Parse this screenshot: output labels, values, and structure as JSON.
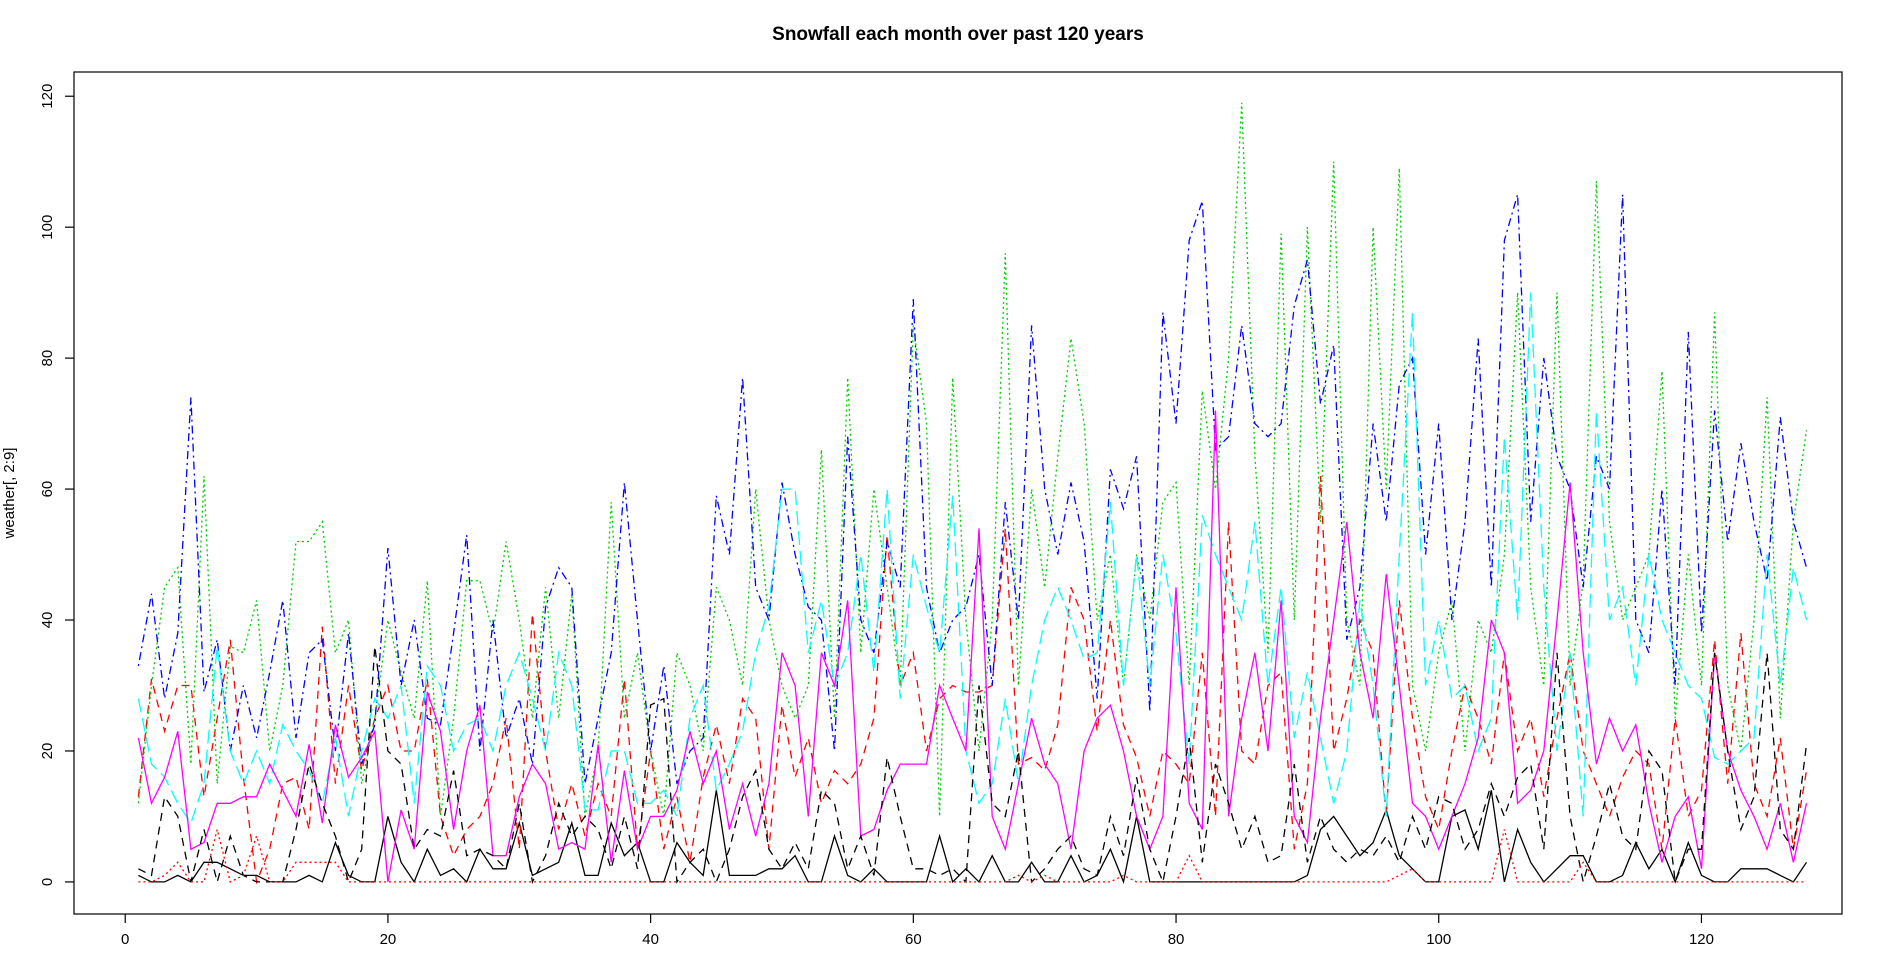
{
  "chart_data": {
    "type": "line",
    "title": "Snowfall each month over past 120 years",
    "y_label": "weather[, 2:9]",
    "xlim": [
      -3.9,
      130.7
    ],
    "ylim": [
      -4.9,
      123.7
    ],
    "xticks": [
      0,
      20,
      40,
      60,
      80,
      100,
      120
    ],
    "yticks": [
      0,
      20,
      40,
      60,
      80,
      100,
      120
    ],
    "x": [
      1,
      2,
      3,
      4,
      5,
      6,
      7,
      8,
      9,
      10,
      11,
      12,
      13,
      14,
      15,
      16,
      17,
      18,
      19,
      20,
      21,
      22,
      23,
      24,
      25,
      26,
      27,
      28,
      29,
      30,
      31,
      32,
      33,
      34,
      35,
      36,
      37,
      38,
      39,
      40,
      41,
      42,
      43,
      44,
      45,
      46,
      47,
      48,
      49,
      50,
      51,
      52,
      53,
      54,
      55,
      56,
      57,
      58,
      59,
      60,
      61,
      62,
      63,
      64,
      65,
      66,
      67,
      68,
      69,
      70,
      71,
      72,
      73,
      74,
      75,
      76,
      77,
      78,
      79,
      80,
      81,
      82,
      83,
      84,
      85,
      86,
      87,
      88,
      89,
      90,
      91,
      92,
      93,
      94,
      95,
      96,
      97,
      98,
      99,
      100,
      101,
      102,
      103,
      104,
      105,
      106,
      107,
      108,
      109,
      110,
      111,
      112,
      113,
      114,
      115,
      116,
      117,
      118,
      119,
      120,
      121,
      122,
      123,
      124,
      125,
      126,
      127,
      128
    ],
    "series": [
      {
        "color": "#000000",
        "dash": "none",
        "values": [
          1,
          0,
          0,
          1,
          0,
          3,
          3,
          2,
          1,
          1,
          0,
          0,
          0,
          1,
          0,
          6,
          1,
          0,
          0,
          10,
          3,
          0,
          5,
          1,
          2,
          0,
          5,
          2,
          2,
          9,
          1,
          2,
          3,
          9,
          1,
          1,
          9,
          4,
          6,
          0,
          0,
          6,
          3,
          1,
          14,
          1,
          1,
          1,
          2,
          2,
          4,
          0,
          0,
          7,
          1,
          0,
          2,
          0,
          0,
          0,
          0,
          7,
          0,
          2,
          0,
          4,
          0,
          0,
          3,
          0,
          0,
          4,
          0,
          1,
          5,
          0,
          10,
          0,
          0,
          0,
          0,
          0,
          0,
          0,
          0,
          0,
          0,
          0,
          0,
          1,
          8,
          10,
          7,
          4,
          6,
          11,
          4,
          2,
          0,
          0,
          10,
          11,
          5,
          14,
          0,
          8,
          3,
          0,
          2,
          4,
          4,
          0,
          0,
          1,
          6,
          2,
          5,
          0,
          6,
          1,
          0,
          0,
          2,
          2,
          2,
          1,
          0,
          3
        ]
      },
      {
        "color": "#ff0000",
        "dash": "8,6",
        "values": [
          13,
          31,
          23,
          30,
          30,
          13,
          25,
          37,
          16,
          0,
          5,
          15,
          16,
          8,
          39,
          15,
          30,
          17,
          25,
          30,
          20,
          20,
          31,
          10,
          4,
          8,
          10,
          15,
          25,
          5,
          41,
          20,
          8,
          15,
          7,
          15,
          10,
          31,
          5,
          20,
          5,
          13,
          3,
          16,
          24,
          15,
          28,
          25,
          5,
          27,
          16,
          22,
          12,
          17,
          15,
          18,
          25,
          53,
          30,
          35,
          20,
          28,
          30,
          29,
          29,
          30,
          54,
          18,
          19,
          17,
          24,
          45,
          40,
          23,
          40,
          24,
          19,
          10,
          20,
          18,
          15,
          35,
          10,
          55,
          20,
          18,
          30,
          32,
          5,
          15,
          62,
          20,
          28,
          40,
          35,
          10,
          43,
          25,
          13,
          8,
          20,
          30,
          25,
          18,
          35,
          20,
          25,
          13,
          25,
          35,
          20,
          15,
          10,
          16,
          20,
          18,
          5,
          25,
          10,
          14,
          37,
          15,
          38,
          15,
          10,
          22,
          5,
          17
        ]
      },
      {
        "color": "#00cd00",
        "dash": "2,3",
        "values": [
          12,
          30,
          45,
          48,
          18,
          62,
          15,
          36,
          35,
          43,
          20,
          30,
          52,
          52,
          55,
          35,
          40,
          15,
          25,
          40,
          32,
          25,
          46,
          10,
          25,
          46,
          46,
          38,
          52,
          40,
          25,
          45,
          25,
          44,
          10,
          20,
          58,
          25,
          35,
          20,
          10,
          35,
          30,
          20,
          45,
          40,
          30,
          60,
          40,
          30,
          25,
          30,
          66,
          25,
          77,
          35,
          60,
          45,
          30,
          85,
          70,
          10,
          77,
          40,
          20,
          40,
          96,
          30,
          60,
          45,
          65,
          83,
          70,
          40,
          50,
          30,
          50,
          40,
          58,
          61,
          30,
          75,
          60,
          80,
          119,
          65,
          35,
          99,
          40,
          100,
          55,
          110,
          40,
          30,
          100,
          60,
          109,
          30,
          20,
          35,
          43,
          20,
          40,
          35,
          50,
          90,
          45,
          30,
          90,
          30,
          46,
          107,
          55,
          40,
          45,
          50,
          78,
          25,
          50,
          30,
          87,
          30,
          20,
          40,
          74,
          25,
          55,
          69
        ]
      },
      {
        "color": "#0000ff",
        "dash": "2,4,8,4",
        "values": [
          33,
          44,
          28,
          38,
          74,
          29,
          37,
          20,
          30,
          22,
          32,
          43,
          22,
          35,
          37,
          20,
          38,
          18,
          24,
          51,
          30,
          40,
          25,
          24,
          38,
          53,
          20,
          40,
          22,
          28,
          18,
          42,
          48,
          45,
          15,
          25,
          35,
          61,
          40,
          20,
          33,
          15,
          20,
          22,
          59,
          50,
          77,
          45,
          40,
          61,
          50,
          42,
          40,
          20,
          68,
          40,
          35,
          52,
          45,
          89,
          45,
          35,
          40,
          42,
          50,
          30,
          58,
          40,
          85,
          60,
          50,
          61,
          52,
          28,
          63,
          57,
          65,
          26,
          87,
          70,
          98,
          104,
          66,
          68,
          85,
          70,
          68,
          70,
          88,
          95,
          73,
          82,
          37,
          45,
          70,
          55,
          76,
          80,
          50,
          70,
          40,
          55,
          83,
          45,
          98,
          105,
          55,
          80,
          65,
          60,
          45,
          65,
          60,
          105,
          40,
          35,
          60,
          30,
          84,
          38,
          72,
          52,
          67,
          55,
          46,
          71,
          55,
          48
        ]
      },
      {
        "color": "#00ffff",
        "dash": "14,6",
        "values": [
          28,
          18,
          16,
          12,
          9,
          15,
          36,
          20,
          15,
          20,
          15,
          24,
          20,
          17,
          12,
          22,
          10,
          20,
          28,
          25,
          30,
          12,
          33,
          30,
          20,
          24,
          25,
          20,
          30,
          35,
          28,
          20,
          35,
          30,
          11,
          11,
          20,
          20,
          12,
          12,
          14,
          10,
          25,
          30,
          14,
          18,
          23,
          35,
          42,
          60,
          60,
          35,
          43,
          30,
          35,
          50,
          32,
          60,
          28,
          50,
          42,
          35,
          59,
          20,
          12,
          15,
          28,
          15,
          30,
          40,
          45,
          40,
          34,
          35,
          58,
          30,
          50,
          30,
          50,
          38,
          18,
          56,
          50,
          45,
          40,
          55,
          30,
          45,
          22,
          32,
          22,
          12,
          20,
          43,
          30,
          10,
          50,
          87,
          30,
          40,
          28,
          30,
          20,
          25,
          68,
          40,
          90,
          45,
          20,
          35,
          10,
          72,
          40,
          45,
          30,
          50,
          40,
          35,
          30,
          28,
          19,
          18,
          20,
          22,
          50,
          30,
          48,
          40
        ]
      },
      {
        "color": "#ff00ff",
        "dash": "none",
        "values": [
          22,
          12,
          16,
          23,
          5,
          6,
          12,
          12,
          13,
          13,
          18,
          14,
          10,
          21,
          9,
          24,
          16,
          19,
          23,
          0,
          11,
          5,
          29,
          23,
          8,
          20,
          27,
          4,
          4,
          13,
          18,
          15,
          5,
          6,
          5,
          21,
          3,
          17,
          5,
          10,
          10,
          14,
          23,
          15,
          20,
          8,
          15,
          7,
          15,
          35,
          30,
          10,
          35,
          30,
          43,
          7,
          8,
          14,
          18,
          18,
          18,
          30,
          25,
          20,
          54,
          10,
          5,
          15,
          25,
          18,
          15,
          5,
          20,
          25,
          27,
          20,
          10,
          5,
          10,
          45,
          12,
          8,
          72,
          10,
          25,
          35,
          20,
          43,
          10,
          6,
          25,
          40,
          55,
          35,
          25,
          47,
          30,
          12,
          10,
          5,
          10,
          15,
          22,
          40,
          35,
          12,
          14,
          20,
          40,
          61,
          35,
          18,
          25,
          20,
          24,
          12,
          3,
          10,
          13,
          2,
          35,
          20,
          14,
          10,
          5,
          12,
          3,
          12
        ]
      },
      {
        "color": "#000000",
        "dash": "8,6",
        "values": [
          2,
          1,
          13,
          10,
          0,
          8,
          0,
          7,
          1,
          0,
          0,
          0,
          8,
          18,
          12,
          7,
          0,
          5,
          36,
          20,
          18,
          5,
          8,
          7,
          17,
          4,
          5,
          4,
          2,
          12,
          0,
          4,
          12,
          7,
          10,
          8,
          2,
          10,
          2,
          27,
          28,
          0,
          3,
          5,
          0,
          5,
          13,
          17,
          5,
          2,
          6,
          2,
          14,
          12,
          2,
          7,
          1,
          19,
          10,
          2,
          2,
          1,
          2,
          0,
          30,
          12,
          10,
          20,
          0,
          2,
          5,
          7,
          2,
          1,
          10,
          4,
          16,
          5,
          0,
          10,
          22,
          3,
          18,
          12,
          5,
          10,
          3,
          4,
          18,
          3,
          10,
          5,
          3,
          5,
          4,
          7,
          3,
          10,
          5,
          13,
          12,
          5,
          8,
          15,
          10,
          16,
          18,
          5,
          35,
          10,
          0,
          7,
          15,
          7,
          5,
          20,
          17,
          0,
          5,
          5,
          35,
          20,
          8,
          13,
          35,
          8,
          5,
          21
        ]
      },
      {
        "color": "#ff0000",
        "dash": "2,3",
        "values": [
          0,
          0,
          1,
          3,
          0,
          0,
          8,
          0,
          1,
          7,
          0,
          0,
          3,
          3,
          3,
          3,
          0,
          0,
          0,
          0,
          0,
          0,
          0,
          0,
          0,
          0,
          0,
          0,
          0,
          0,
          0,
          0,
          0,
          0,
          0,
          0,
          0,
          0,
          0,
          0,
          0,
          0,
          0,
          0,
          0,
          0,
          0,
          0,
          0,
          0,
          0,
          0,
          0,
          0,
          0,
          0,
          0,
          0,
          0,
          0,
          0,
          0,
          0,
          0,
          0,
          0,
          0,
          1,
          0,
          1,
          0,
          0,
          0,
          0,
          0,
          1,
          0,
          0,
          0,
          0,
          4,
          0,
          0,
          0,
          0,
          0,
          0,
          0,
          0,
          0,
          0,
          0,
          0,
          0,
          0,
          0,
          1,
          2,
          0,
          0,
          0,
          0,
          0,
          0,
          8,
          0,
          0,
          0,
          0,
          0,
          3,
          0,
          0,
          0,
          0,
          0,
          0,
          0,
          0,
          0,
          0,
          0,
          0,
          0,
          0,
          0,
          0,
          0
        ]
      }
    ]
  }
}
